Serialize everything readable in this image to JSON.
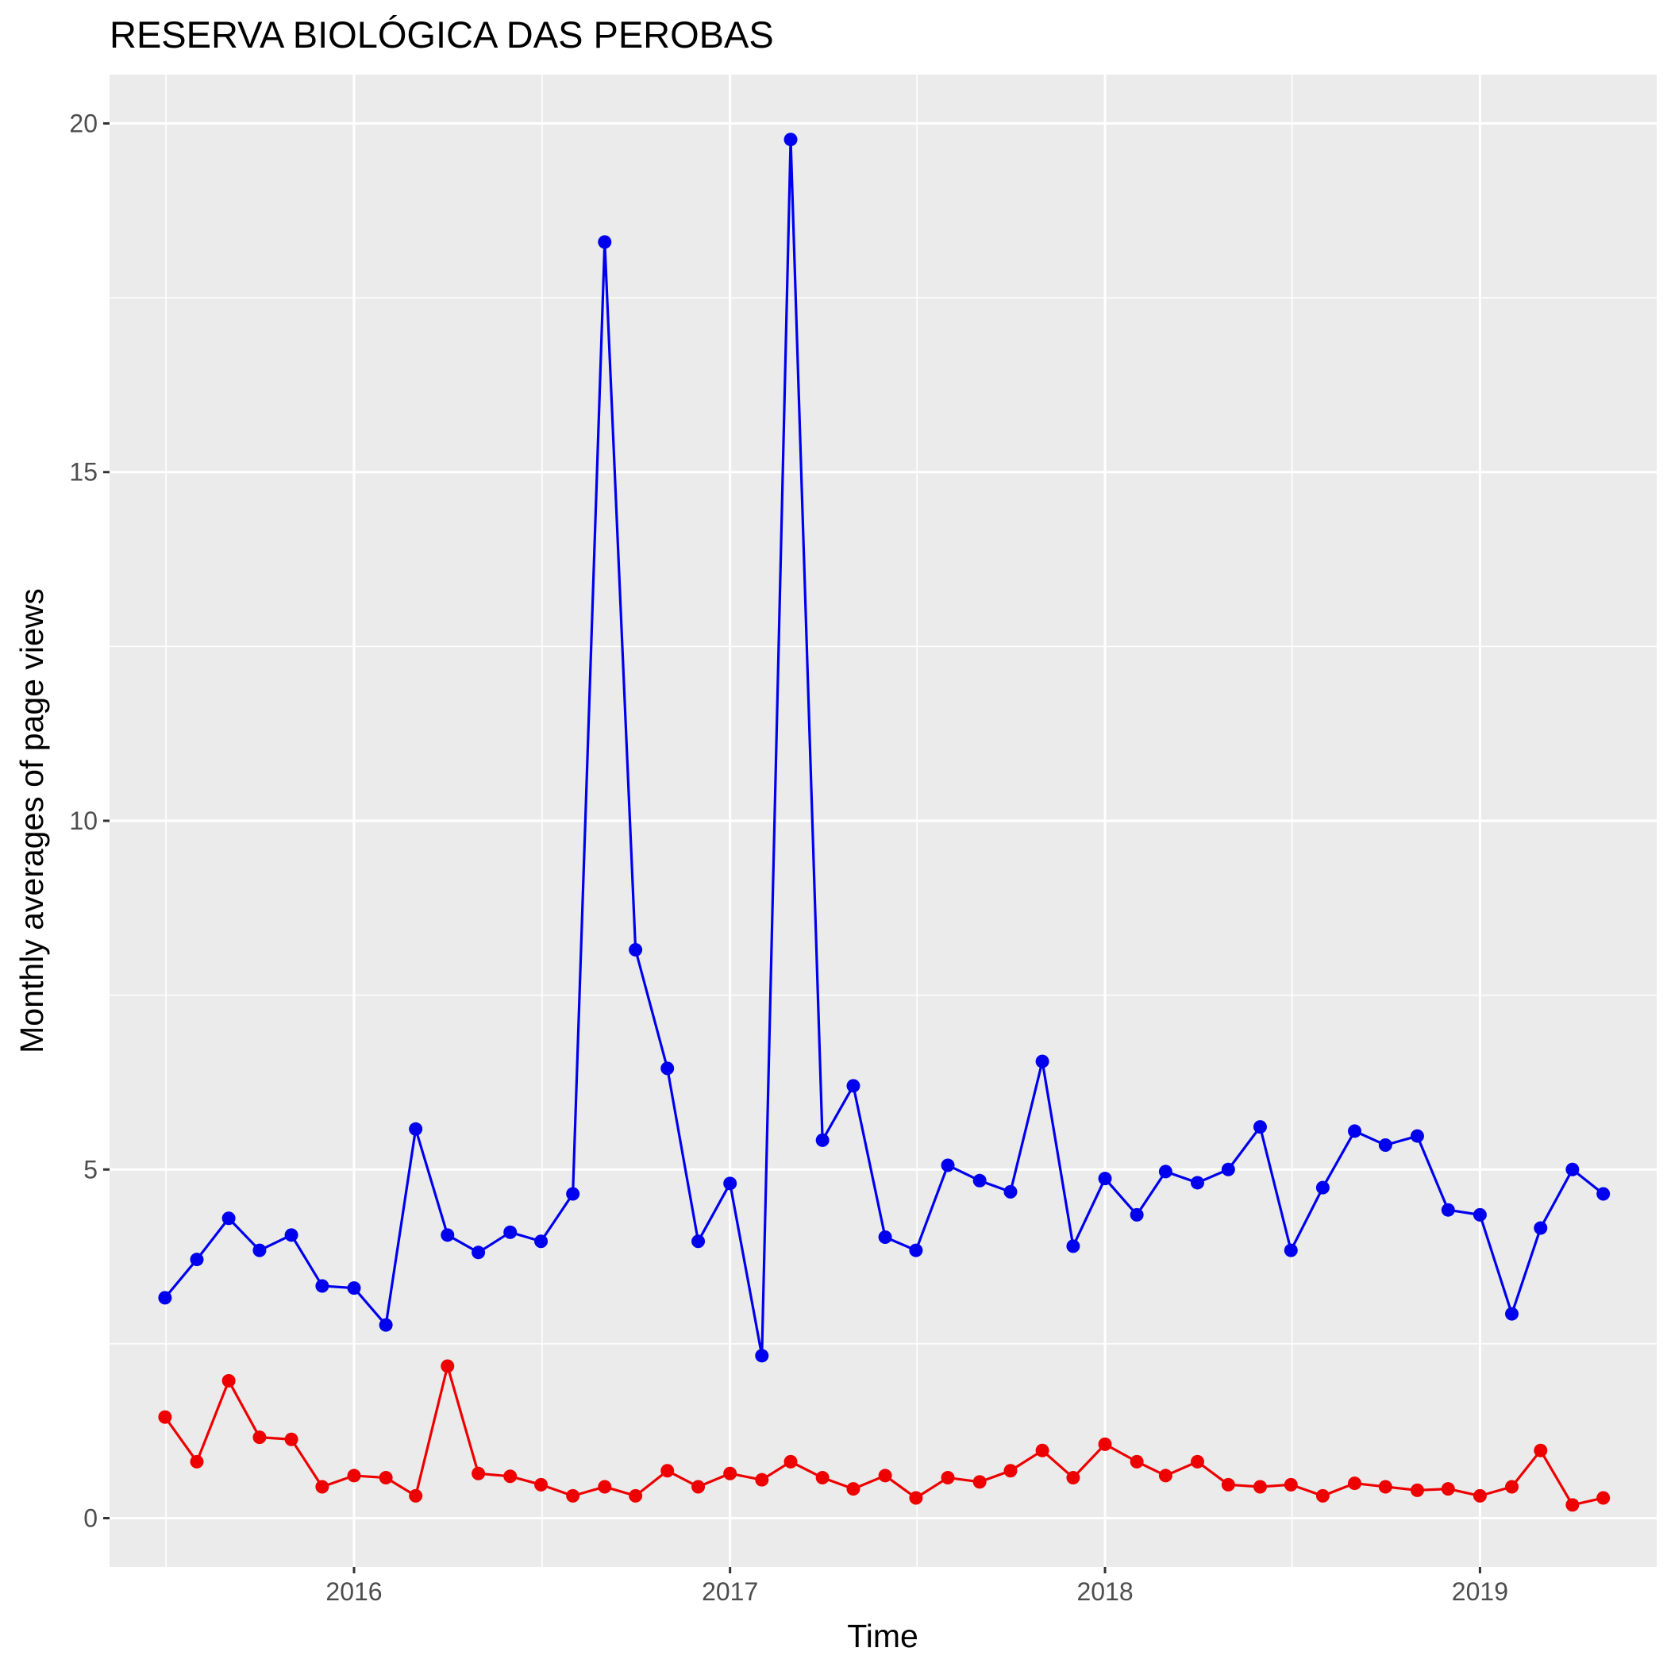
{
  "chart_data": {
    "type": "line",
    "title": "RESERVA BIOLÓGICA DAS PEROBAS",
    "xlabel": "Time",
    "ylabel": "Monthly averages of page views",
    "x_ticks": [
      "2016",
      "2017",
      "2018",
      "2019"
    ],
    "y_ticks": [
      "0",
      "5",
      "10",
      "15",
      "20"
    ],
    "ylim": [
      -0.7,
      20.7
    ],
    "xlim": [
      "2015-05-08",
      "2019-06-22"
    ],
    "grid": true,
    "colors": {
      "panel": "#ebebeb",
      "grid": "#ffffff",
      "series_blue": "#0000ee",
      "series_red": "#ee0000"
    },
    "x": [
      "2015-07-01",
      "2015-08-01",
      "2015-09-01",
      "2015-10-01",
      "2015-11-01",
      "2015-12-01",
      "2016-01-01",
      "2016-02-01",
      "2016-03-01",
      "2016-04-01",
      "2016-05-01",
      "2016-06-01",
      "2016-07-01",
      "2016-08-01",
      "2016-09-01",
      "2016-10-01",
      "2016-11-01",
      "2016-12-01",
      "2017-01-01",
      "2017-02-01",
      "2017-03-01",
      "2017-04-01",
      "2017-05-01",
      "2017-06-01",
      "2017-07-01",
      "2017-08-01",
      "2017-09-01",
      "2017-10-01",
      "2017-11-01",
      "2017-12-01",
      "2018-01-01",
      "2018-02-01",
      "2018-03-01",
      "2018-04-01",
      "2018-05-01",
      "2018-06-01",
      "2018-07-01",
      "2018-08-01",
      "2018-09-01",
      "2018-10-01",
      "2018-11-01",
      "2018-12-01",
      "2019-01-01",
      "2019-02-01",
      "2019-03-01",
      "2019-04-01",
      "2019-05-01"
    ],
    "series": [
      {
        "color": "#0000ee",
        "values": [
          3.16,
          3.71,
          4.3,
          3.84,
          4.06,
          3.33,
          3.3,
          2.77,
          5.58,
          4.06,
          3.81,
          4.1,
          3.97,
          4.65,
          18.3,
          8.15,
          6.45,
          3.97,
          4.8,
          2.33,
          19.77,
          5.42,
          6.2,
          4.03,
          3.84,
          5.06,
          4.84,
          4.68,
          6.55,
          3.9,
          4.87,
          4.35,
          4.97,
          4.81,
          5.0,
          5.61,
          3.84,
          4.74,
          5.55,
          5.35,
          5.48,
          4.42,
          4.35,
          2.93,
          4.16,
          5.0,
          4.65
        ]
      },
      {
        "color": "#ee0000",
        "values": [
          1.45,
          0.81,
          1.97,
          1.16,
          1.13,
          0.45,
          0.61,
          0.58,
          0.32,
          2.18,
          0.64,
          0.6,
          0.48,
          0.32,
          0.45,
          0.32,
          0.68,
          0.45,
          0.64,
          0.55,
          0.81,
          0.58,
          0.42,
          0.61,
          0.29,
          0.58,
          0.52,
          0.68,
          0.97,
          0.58,
          1.06,
          0.81,
          0.61,
          0.81,
          0.48,
          0.45,
          0.48,
          0.32,
          0.5,
          0.45,
          0.4,
          0.42,
          0.32,
          0.45,
          0.97,
          0.19,
          0.29
        ]
      }
    ]
  }
}
